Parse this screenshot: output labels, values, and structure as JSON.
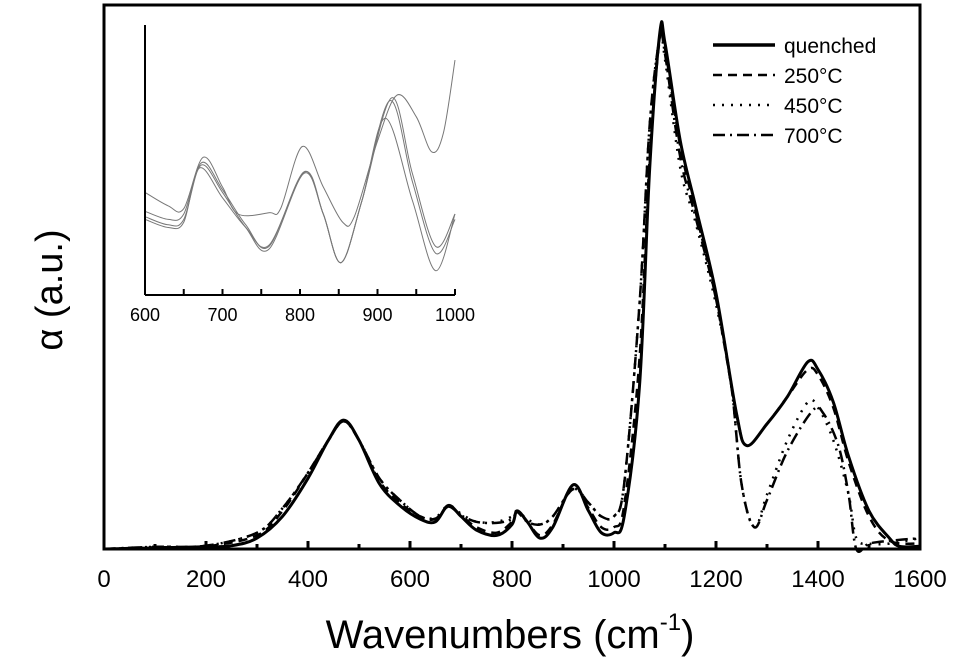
{
  "chart_data": [
    {
      "type": "line",
      "xlabel": "Wavenumbers (cm",
      "xlabel_sup": "-1",
      "xlabel_close": ")",
      "ylabel": "α (a.u.)",
      "xlim": [
        0,
        1600
      ],
      "ylim": [
        0,
        1
      ],
      "xticks": [
        0,
        200,
        400,
        600,
        800,
        1000,
        1200,
        1400,
        1600
      ],
      "grid": false,
      "legend_position": "top-right",
      "series": [
        {
          "name": "quenched",
          "style": "solid",
          "x": [
            0,
            100,
            200,
            250,
            300,
            350,
            400,
            440,
            470,
            500,
            540,
            580,
            620,
            650,
            675,
            700,
            730,
            770,
            800,
            810,
            830,
            855,
            880,
            920,
            950,
            975,
            1000,
            1020,
            1050,
            1070,
            1090,
            1100,
            1130,
            1160,
            1200,
            1240,
            1260,
            1300,
            1340,
            1380,
            1400,
            1430,
            1460,
            1500,
            1540,
            1560,
            1600
          ],
          "y": [
            0,
            0.002,
            0.004,
            0.006,
            0.02,
            0.06,
            0.13,
            0.2,
            0.237,
            0.2,
            0.12,
            0.08,
            0.055,
            0.05,
            0.08,
            0.06,
            0.035,
            0.025,
            0.045,
            0.07,
            0.05,
            0.02,
            0.04,
            0.118,
            0.07,
            0.03,
            0.03,
            0.06,
            0.3,
            0.7,
            0.95,
            0.93,
            0.75,
            0.63,
            0.47,
            0.25,
            0.19,
            0.23,
            0.28,
            0.344,
            0.33,
            0.27,
            0.17,
            0.07,
            0.02,
            0.005,
            0.005
          ]
        },
        {
          "name": "250°C",
          "style": "dashed",
          "x": [
            0,
            100,
            200,
            300,
            350,
            400,
            440,
            470,
            500,
            540,
            580,
            620,
            650,
            675,
            700,
            730,
            770,
            800,
            810,
            830,
            855,
            880,
            920,
            950,
            975,
            1000,
            1020,
            1050,
            1070,
            1090,
            1100,
            1130,
            1160,
            1200,
            1240,
            1260,
            1300,
            1340,
            1380,
            1400,
            1430,
            1460,
            1500,
            1540,
            1600
          ],
          "y": [
            0,
            0.003,
            0.005,
            0.025,
            0.07,
            0.14,
            0.2,
            0.235,
            0.2,
            0.125,
            0.085,
            0.06,
            0.055,
            0.078,
            0.062,
            0.04,
            0.03,
            0.05,
            0.068,
            0.05,
            0.025,
            0.045,
            0.115,
            0.075,
            0.04,
            0.04,
            0.08,
            0.35,
            0.72,
            0.94,
            0.92,
            0.74,
            0.62,
            0.46,
            0.25,
            0.19,
            0.23,
            0.28,
            0.33,
            0.32,
            0.26,
            0.16,
            0.06,
            0.015,
            0.01
          ]
        },
        {
          "name": "450°C",
          "style": "dotted",
          "x": [
            0,
            100,
            200,
            300,
            350,
            400,
            440,
            470,
            500,
            540,
            580,
            620,
            650,
            675,
            700,
            730,
            770,
            800,
            810,
            830,
            855,
            880,
            920,
            950,
            975,
            1000,
            1020,
            1050,
            1070,
            1090,
            1100,
            1130,
            1160,
            1200,
            1230,
            1250,
            1275,
            1300,
            1340,
            1380,
            1400,
            1430,
            1460,
            1475,
            1500,
            1540,
            1600
          ],
          "y": [
            0,
            0.004,
            0.006,
            0.03,
            0.075,
            0.14,
            0.2,
            0.235,
            0.2,
            0.13,
            0.09,
            0.06,
            0.058,
            0.08,
            0.065,
            0.05,
            0.05,
            0.06,
            0.07,
            0.055,
            0.045,
            0.06,
            0.11,
            0.085,
            0.06,
            0.06,
            0.12,
            0.45,
            0.78,
            0.94,
            0.9,
            0.7,
            0.6,
            0.45,
            0.3,
            0.12,
            0.04,
            0.1,
            0.2,
            0.27,
            0.26,
            0.2,
            0.1,
            0.02,
            0.01,
            0.01,
            0.02
          ]
        },
        {
          "name": "700°C",
          "style": "dashdot",
          "x": [
            0,
            100,
            200,
            300,
            350,
            400,
            440,
            470,
            500,
            540,
            580,
            620,
            650,
            675,
            700,
            730,
            770,
            800,
            810,
            830,
            855,
            880,
            920,
            950,
            975,
            1000,
            1020,
            1050,
            1070,
            1090,
            1100,
            1130,
            1160,
            1200,
            1230,
            1250,
            1275,
            1300,
            1340,
            1390,
            1410,
            1440,
            1460,
            1475,
            1500,
            1540,
            1600
          ],
          "y": [
            0,
            0.004,
            0.006,
            0.03,
            0.075,
            0.14,
            0.2,
            0.235,
            0.2,
            0.13,
            0.09,
            0.06,
            0.056,
            0.078,
            0.062,
            0.05,
            0.048,
            0.055,
            0.068,
            0.05,
            0.045,
            0.06,
            0.11,
            0.085,
            0.06,
            0.06,
            0.12,
            0.45,
            0.78,
            0.94,
            0.91,
            0.72,
            0.61,
            0.46,
            0.3,
            0.12,
            0.04,
            0.09,
            0.18,
            0.255,
            0.25,
            0.19,
            0.1,
            0.0,
            0.01,
            0.015,
            0.02
          ]
        }
      ]
    },
    {
      "type": "line",
      "inset": true,
      "xlim": [
        600,
        1000
      ],
      "ylim": [
        0,
        1
      ],
      "xticks": [
        600,
        700,
        800,
        900,
        1000
      ],
      "color": "#777777",
      "series": [
        {
          "x": [
            600,
            630,
            650,
            675,
            700,
            720,
            760,
            775,
            803,
            830,
            855,
            870,
            900,
            925,
            950,
            970,
            985,
            1000
          ],
          "y": [
            0.38,
            0.33,
            0.32,
            0.51,
            0.4,
            0.3,
            0.305,
            0.32,
            0.55,
            0.4,
            0.27,
            0.29,
            0.57,
            0.74,
            0.66,
            0.53,
            0.6,
            0.87
          ]
        },
        {
          "x": [
            600,
            630,
            650,
            673,
            700,
            730,
            760,
            805,
            830,
            853,
            880,
            918,
            945,
            975,
            1000
          ],
          "y": [
            0.31,
            0.28,
            0.3,
            0.49,
            0.39,
            0.26,
            0.18,
            0.456,
            0.3,
            0.12,
            0.35,
            0.73,
            0.45,
            0.18,
            0.3
          ]
        },
        {
          "x": [
            600,
            630,
            650,
            672,
            700,
            730,
            760,
            805,
            830,
            853,
            880,
            916,
            945,
            975,
            1000
          ],
          "y": [
            0.29,
            0.26,
            0.28,
            0.48,
            0.38,
            0.25,
            0.17,
            0.45,
            0.3,
            0.12,
            0.35,
            0.72,
            0.42,
            0.155,
            0.28
          ]
        },
        {
          "x": [
            600,
            630,
            650,
            670,
            700,
            730,
            760,
            806,
            830,
            853,
            880,
            910,
            945,
            975,
            1000
          ],
          "y": [
            0.28,
            0.25,
            0.27,
            0.47,
            0.36,
            0.25,
            0.185,
            0.455,
            0.3,
            0.12,
            0.35,
            0.655,
            0.35,
            0.09,
            0.3
          ]
        }
      ]
    }
  ]
}
